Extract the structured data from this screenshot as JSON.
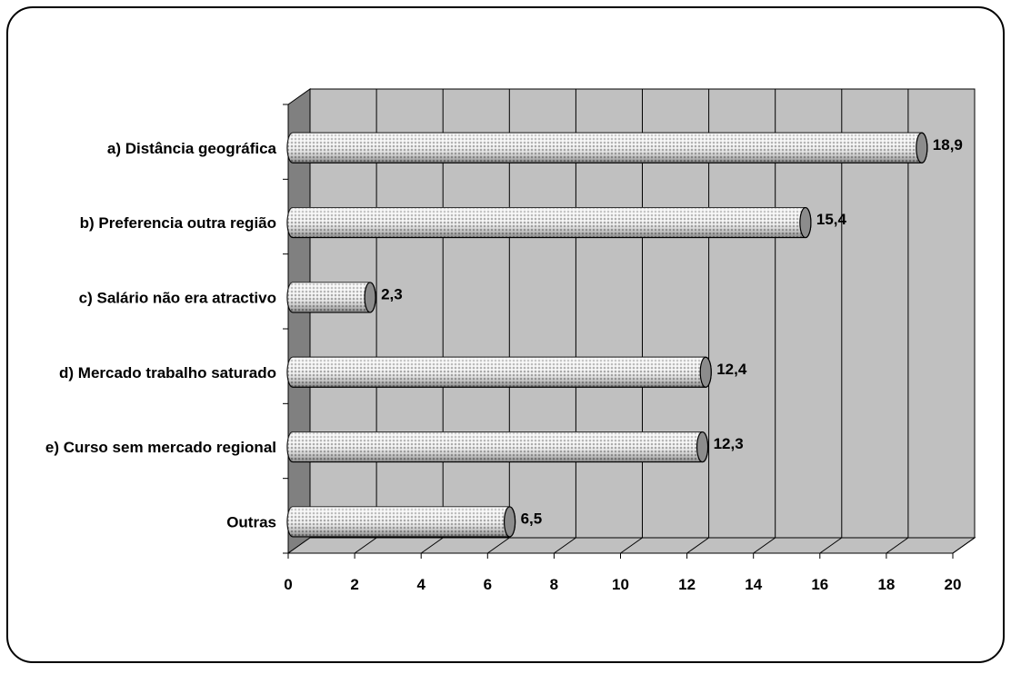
{
  "chart_data": {
    "type": "bar",
    "orientation": "horizontal",
    "style": "3d-cylinder",
    "title": "",
    "xlabel": "",
    "ylabel": "",
    "categories": [
      "a) Distância geográfica",
      "b) Preferencia outra região",
      "c) Salário não era atractivo",
      "d) Mercado trabalho saturado",
      "e) Curso sem mercado regional",
      "Outras"
    ],
    "values": [
      18.9,
      15.4,
      2.3,
      12.4,
      12.3,
      6.5
    ],
    "value_labels": [
      "18,9",
      "15,4",
      "2,3",
      "12,4",
      "12,3",
      "6,5"
    ],
    "xlim": [
      0,
      20
    ],
    "x_ticks": [
      0,
      2,
      4,
      6,
      8,
      10,
      12,
      14,
      16,
      18,
      20
    ],
    "grid": true,
    "legend": "none",
    "colors": {
      "plot_back": "#c0c0c0",
      "plot_side": "#808080",
      "plot_floor": "#c0c0c0",
      "bar_light": "#f2f2f2",
      "bar_dark": "#7a7a7a",
      "frame": "#000000"
    }
  }
}
